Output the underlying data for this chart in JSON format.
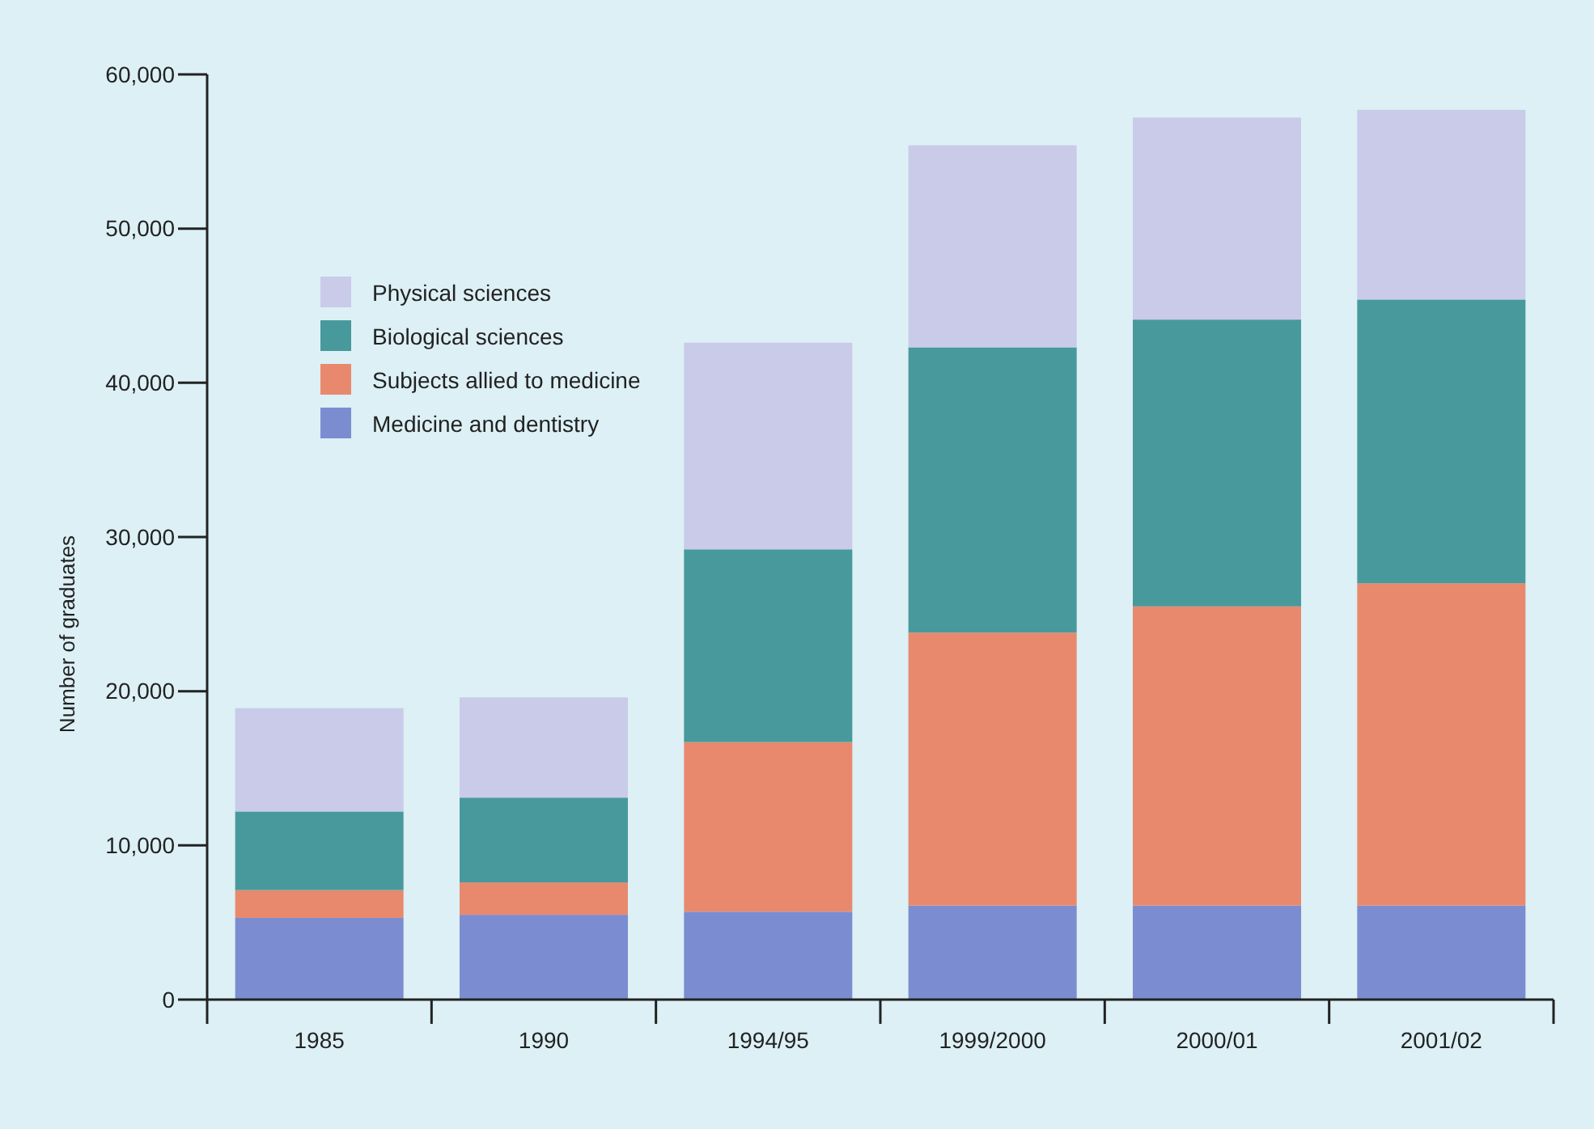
{
  "chart_data": {
    "type": "bar",
    "stacked": true,
    "ylabel": "Number of graduates",
    "categories": [
      "1985",
      "1990",
      "1994/95",
      "1999/2000",
      "2000/01",
      "2001/02"
    ],
    "series": [
      {
        "name": "Medicine and dentistry",
        "color": "#7b8dd0",
        "values": [
          5300,
          5500,
          5700,
          6100,
          6100,
          6100
        ]
      },
      {
        "name": "Subjects allied to medicine",
        "color": "#e8896e",
        "values": [
          1800,
          2100,
          11000,
          17700,
          19400,
          20900
        ]
      },
      {
        "name": "Biological sciences",
        "color": "#48999c",
        "values": [
          5100,
          5500,
          12500,
          18500,
          18600,
          18400
        ]
      },
      {
        "name": "Physical sciences",
        "color": "#c9cbe9",
        "values": [
          6700,
          6500,
          13400,
          13100,
          13100,
          12300
        ]
      }
    ],
    "ylim": [
      0,
      60000
    ],
    "yticks": [
      {
        "value": 0,
        "label": "0"
      },
      {
        "value": 10000,
        "label": "10,000"
      },
      {
        "value": 20000,
        "label": "20,000"
      },
      {
        "value": 30000,
        "label": "30,000"
      },
      {
        "value": 40000,
        "label": "40,000"
      },
      {
        "value": 50000,
        "label": "50,000"
      },
      {
        "value": 60000,
        "label": "60,000"
      }
    ],
    "grid": false,
    "legend": "top left"
  }
}
